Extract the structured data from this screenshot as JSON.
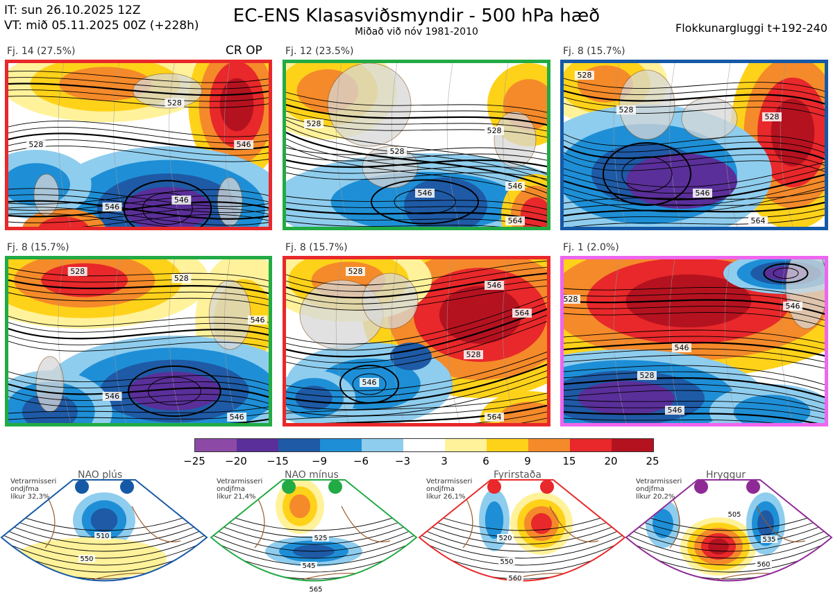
{
  "header": {
    "it_line": "IT: sun 26.10.2025 12Z",
    "vt_line": "VT: mið 05.11.2025 00Z  (+228h)",
    "title": "EC-ENS Klasasviðsmyndir - 500 hPa hæð",
    "subtitle": "Miðað við nóv 1981-2010",
    "window": "Flokkunargluggi t+192-240"
  },
  "colors": {
    "anom": [
      "#8c4aa6",
      "#5a2f99",
      "#1e5aa6",
      "#1e8fd6",
      "#8fcdee",
      "#ffffff",
      "#fff29a",
      "#ffd21a",
      "#f58a2a",
      "#e8282a",
      "#b51220"
    ],
    "panel_borders": [
      "#e8282a",
      "#22aa44",
      "#1559a6",
      "#22aa44",
      "#e8282a",
      "#ee66ee"
    ],
    "regime_colors": [
      "#1559a6",
      "#22aa44",
      "#e8282a",
      "#8e2a96"
    ]
  },
  "chart_data": [
    {
      "type": "heatmap",
      "name": "cluster-1",
      "label": "Fj. 14 (27.5%)",
      "members": 14,
      "probability_pct": 27.5,
      "extra_label": "CR OP",
      "contour_labels": [
        "528",
        "546",
        "546",
        "546",
        "528"
      ]
    },
    {
      "type": "heatmap",
      "name": "cluster-2",
      "label": "Fj. 12 (23.5%)",
      "members": 12,
      "probability_pct": 23.5,
      "contour_labels": [
        "528",
        "528",
        "528",
        "546",
        "546",
        "564"
      ]
    },
    {
      "type": "heatmap",
      "name": "cluster-3",
      "label": "Fj. 8 (15.7%)",
      "members": 8,
      "probability_pct": 15.7,
      "contour_labels": [
        "528",
        "528",
        "528",
        "546",
        "564"
      ]
    },
    {
      "type": "heatmap",
      "name": "cluster-4",
      "label": "Fj. 8 (15.7%)",
      "members": 8,
      "probability_pct": 15.7,
      "contour_labels": [
        "528",
        "528",
        "546",
        "546",
        "546"
      ]
    },
    {
      "type": "heatmap",
      "name": "cluster-5",
      "label": "Fj. 8 (15.7%)",
      "members": 8,
      "probability_pct": 15.7,
      "contour_labels": [
        "528",
        "546",
        "564",
        "528",
        "546",
        "564"
      ]
    },
    {
      "type": "heatmap",
      "name": "cluster-6",
      "label": "Fj. 1 (2.0%)",
      "members": 1,
      "probability_pct": 2.0,
      "contour_labels": [
        "528",
        "546",
        "546",
        "528",
        "546"
      ]
    },
    {
      "type": "colorbar",
      "name": "anomaly-colorbar",
      "ticks": [
        "−25",
        "−20",
        "−15",
        "−9",
        "−6",
        "−3",
        "3",
        "6",
        "9",
        "15",
        "20",
        "25"
      ]
    },
    {
      "type": "regime",
      "name": "regime-nao-plus",
      "title": "NAO plús",
      "side_label": [
        "Vetrarmisseri",
        "ondjfma",
        "líkur 32,3%"
      ],
      "probability_pct": 32.3,
      "contour_labels": [
        "510",
        "550"
      ]
    },
    {
      "type": "regime",
      "name": "regime-nao-minus",
      "title": "NAO mínus",
      "side_label": [
        "Vetrarmisseri",
        "ondjfma",
        "líkur 21,4%"
      ],
      "probability_pct": 21.4,
      "contour_labels": [
        "525",
        "545",
        "565"
      ]
    },
    {
      "type": "regime",
      "name": "regime-blocking",
      "title": "Fyrirstaða",
      "side_label": [
        "Vetrarmisseri",
        "ondjfma",
        "líkur 26,1%"
      ],
      "probability_pct": 26.1,
      "contour_labels": [
        "520",
        "550",
        "560"
      ]
    },
    {
      "type": "regime",
      "name": "regime-ridge",
      "title": "Hryggur",
      "side_label": [
        "Vetrarmisseri",
        "ondjfma",
        "líkur 20,2%"
      ],
      "probability_pct": 20.2,
      "contour_labels": [
        "505",
        "535",
        "560"
      ]
    }
  ]
}
